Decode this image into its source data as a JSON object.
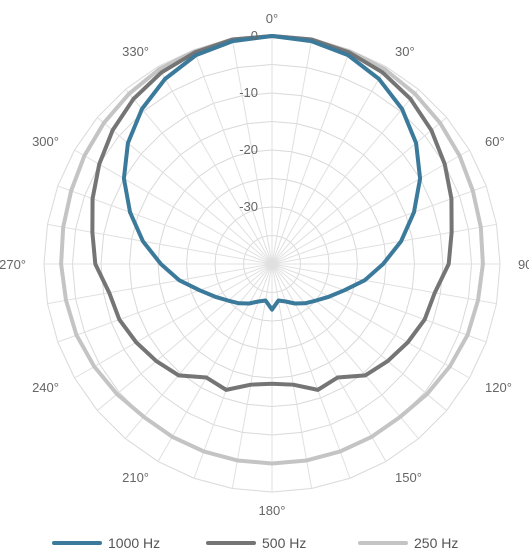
{
  "chart_data": {
    "type": "polar-line",
    "radial_ticks": [
      "0",
      "-10",
      "-20",
      "-30"
    ],
    "radial_range": [
      -40,
      0
    ],
    "angle_labels": [
      "0°",
      "30°",
      "60°",
      "90°",
      "120°",
      "150°",
      "180°",
      "210°",
      "240°",
      "270°",
      "300°",
      "330°"
    ],
    "angle_step": 10,
    "grid": true,
    "legend_position": "bottom",
    "series": [
      {
        "name": "1000 Hz",
        "color": "#3b7a9b",
        "angles": [
          0,
          10,
          20,
          30,
          40,
          50,
          60,
          70,
          80,
          90,
          100,
          110,
          120,
          130,
          140,
          150,
          160,
          170,
          180,
          190,
          200,
          210,
          220,
          230,
          240,
          250,
          260,
          270,
          280,
          290,
          300,
          310,
          320,
          330,
          340,
          350
        ],
        "values": [
          0,
          -0.3,
          -1,
          -2.5,
          -4.5,
          -7,
          -10,
          -13.5,
          -17,
          -20.5,
          -23.5,
          -26.5,
          -28.5,
          -30,
          -31,
          -32,
          -33,
          -33.5,
          -32,
          -33.5,
          -33,
          -32,
          -31,
          -30,
          -28.5,
          -26.5,
          -23.5,
          -20.5,
          -17,
          -13.5,
          -10,
          -7,
          -4.5,
          -2.5,
          -1,
          -0.3
        ]
      },
      {
        "name": "500 Hz",
        "color": "#757575",
        "angles": [
          0,
          10,
          20,
          30,
          40,
          50,
          60,
          70,
          80,
          90,
          100,
          110,
          120,
          130,
          140,
          150,
          160,
          170,
          180,
          190,
          200,
          210,
          220,
          230,
          240,
          250,
          260,
          270,
          280,
          290,
          300,
          310,
          320,
          330,
          340,
          350
        ],
        "values": [
          0,
          0,
          -0.5,
          -1.2,
          -2.2,
          -3.5,
          -5,
          -6.5,
          -8,
          -9,
          -11,
          -11.5,
          -12.5,
          -13.5,
          -14.5,
          -17,
          -16.5,
          -18.5,
          -19,
          -18.5,
          -16.5,
          -17,
          -14.5,
          -13.5,
          -12.5,
          -11.5,
          -11,
          -9,
          -8,
          -6.5,
          -5,
          -3.5,
          -2.2,
          -1.2,
          -0.5,
          0
        ]
      },
      {
        "name": "250 Hz",
        "color": "#c4c4c4",
        "angles": [
          0,
          10,
          20,
          30,
          40,
          50,
          60,
          70,
          80,
          90,
          100,
          110,
          120,
          130,
          140,
          150,
          160,
          170,
          180,
          190,
          200,
          210,
          220,
          230,
          240,
          250,
          260,
          270,
          280,
          290,
          300,
          310,
          320,
          330,
          340,
          350
        ],
        "values": [
          0,
          0,
          -0.3,
          -0.5,
          -1,
          -1.5,
          -2,
          -2.5,
          -2.8,
          -3,
          -3.3,
          -3.5,
          -4,
          -4.5,
          -5,
          -5,
          -5,
          -5,
          -5,
          -5,
          -5,
          -5,
          -5,
          -4.5,
          -4,
          -3.5,
          -3.3,
          -3,
          -2.8,
          -2.5,
          -2,
          -1.5,
          -1,
          -0.5,
          -0.3,
          0
        ]
      }
    ]
  }
}
